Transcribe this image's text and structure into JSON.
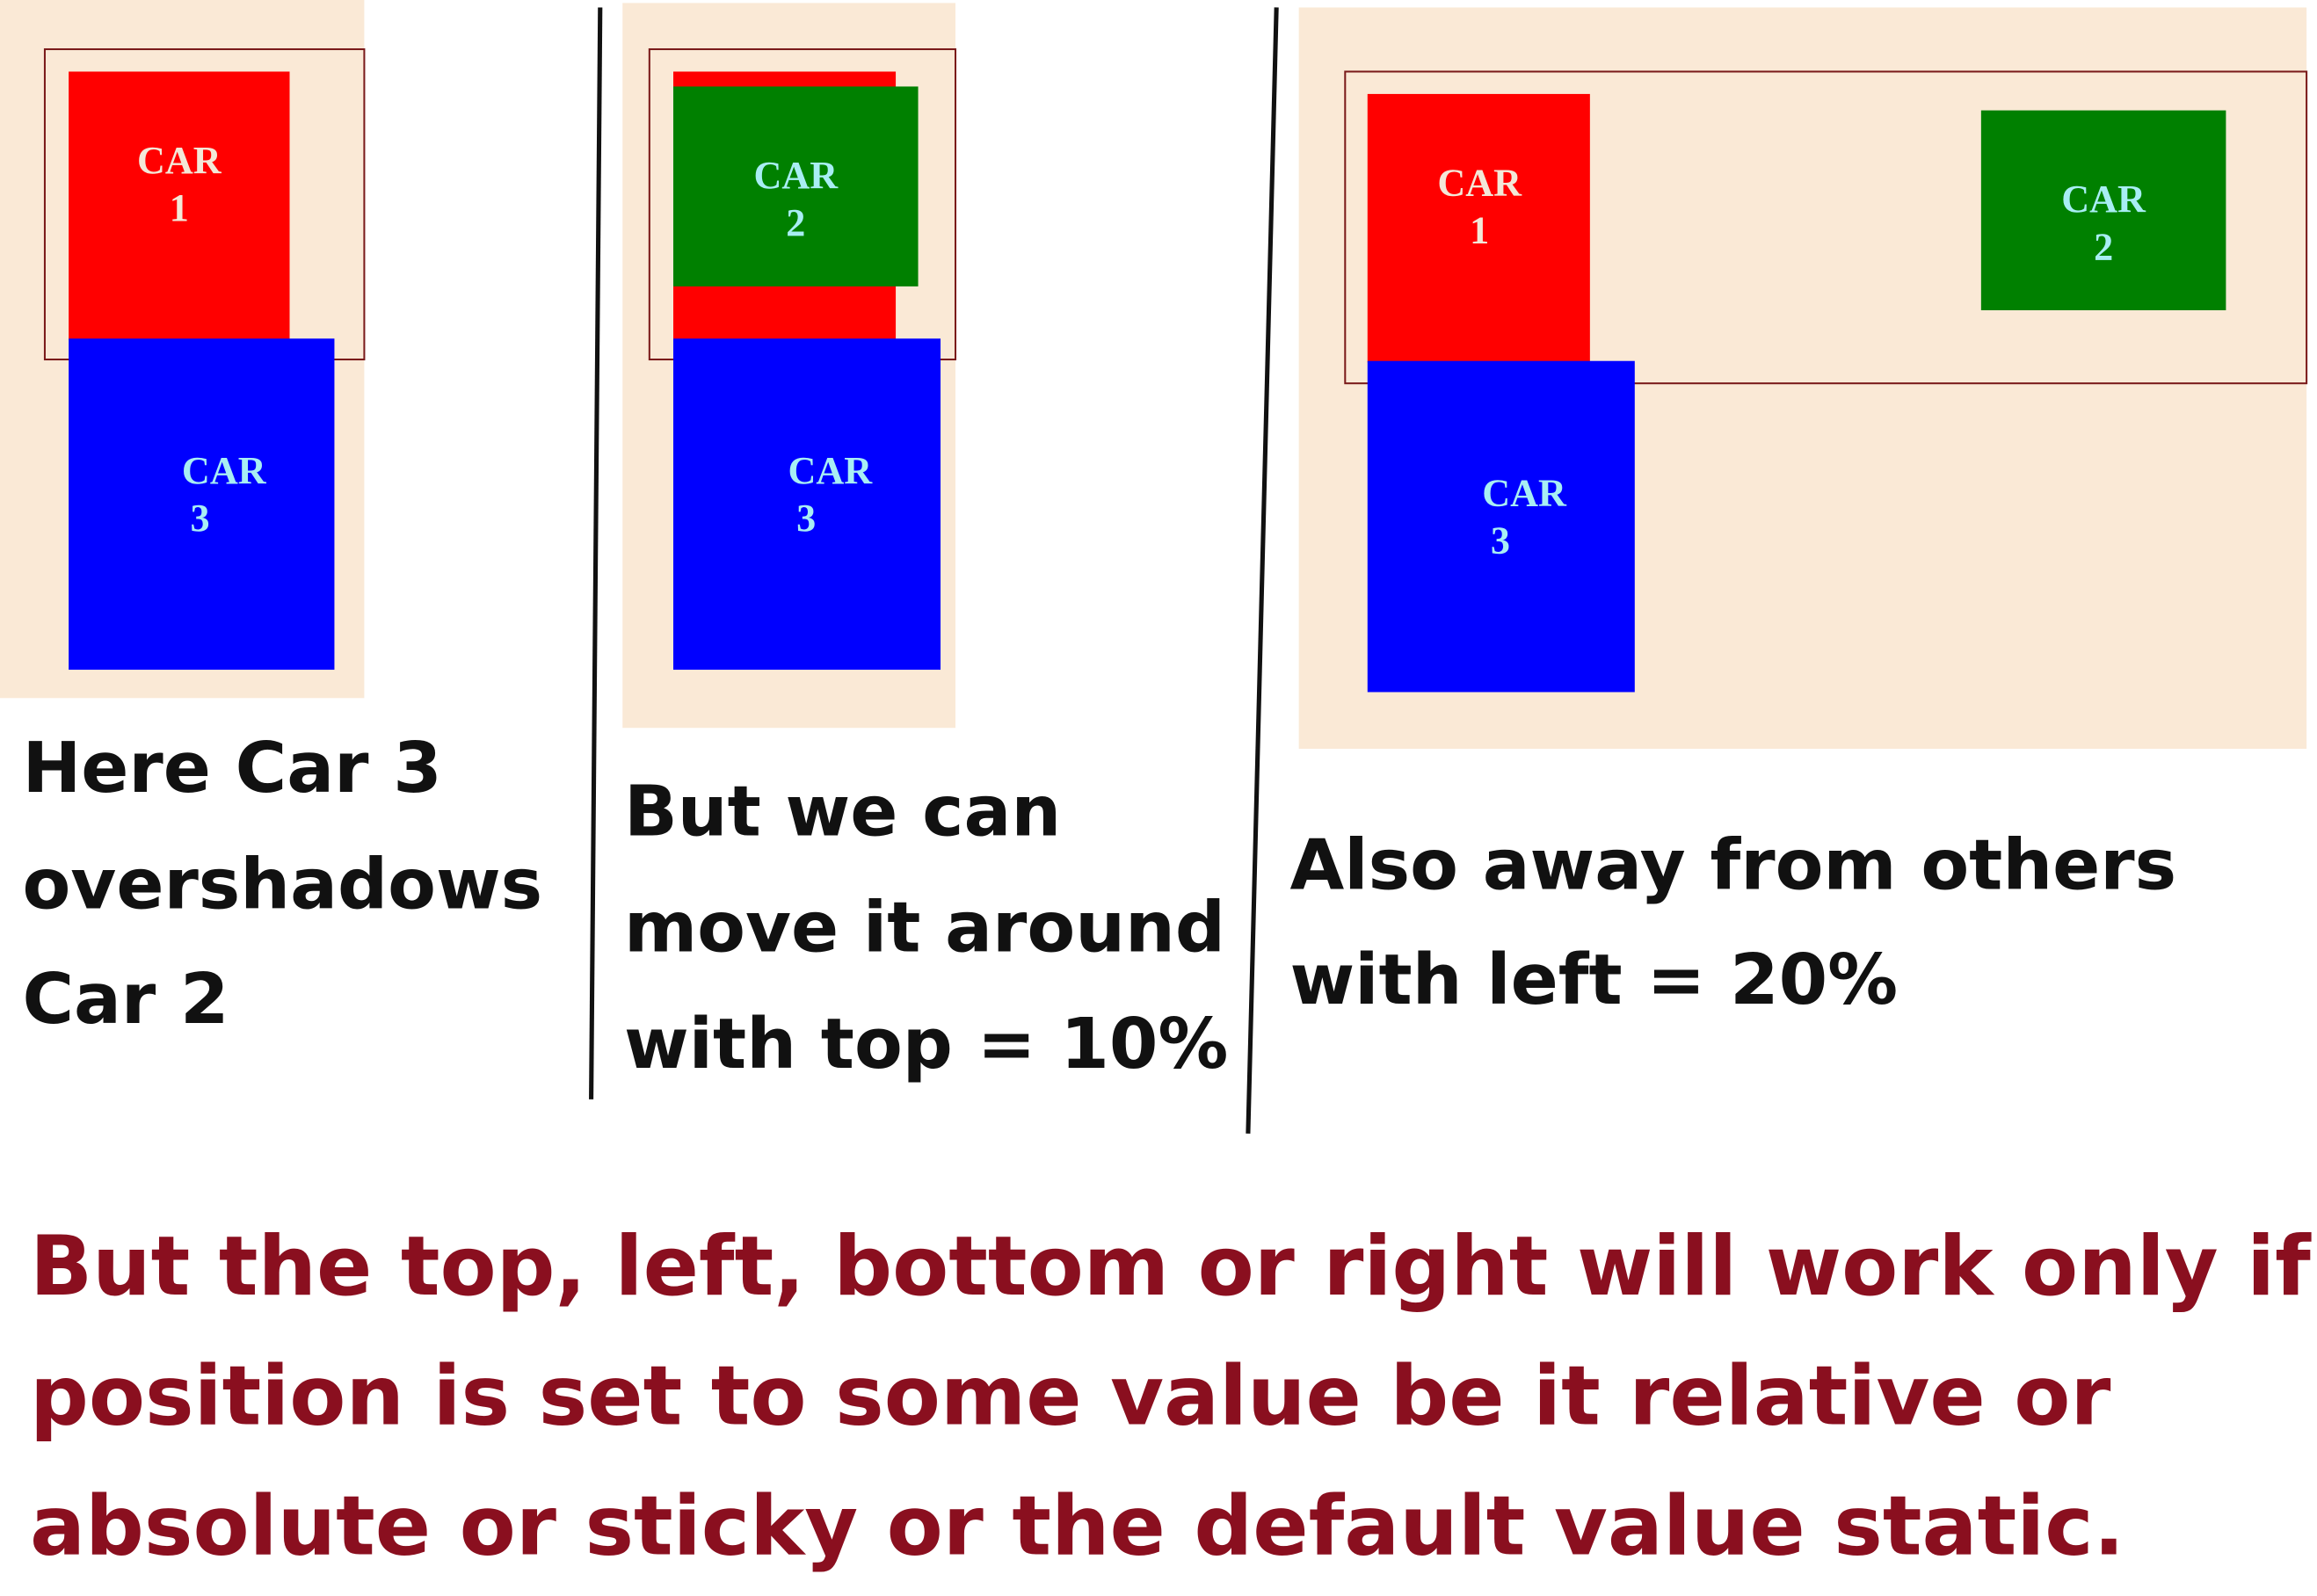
{
  "panels": [
    {
      "cars": [
        {
          "label": [
            "CAR",
            "1"
          ]
        },
        {
          "label": [
            "CAR",
            "3"
          ]
        }
      ],
      "caption": [
        "Here Car 3",
        "overshadows",
        "Car 2"
      ]
    },
    {
      "cars": [
        {
          "label": [
            "CAR",
            "2"
          ]
        },
        {
          "label": [
            "CAR",
            "3"
          ]
        }
      ],
      "caption": [
        "But we can",
        "move it around",
        "with top = 10%"
      ]
    },
    {
      "cars": [
        {
          "label": [
            "CAR",
            "1"
          ]
        },
        {
          "label": [
            "CAR",
            "2"
          ]
        },
        {
          "label": [
            "CAR",
            "3"
          ]
        }
      ],
      "caption": [
        "Also away from others",
        "with left = 20%"
      ]
    }
  ],
  "note": [
    "But the top, left, bottom or right will work only if",
    "position is set to some value be it relative or",
    "absolute or sticky or the default value static."
  ]
}
